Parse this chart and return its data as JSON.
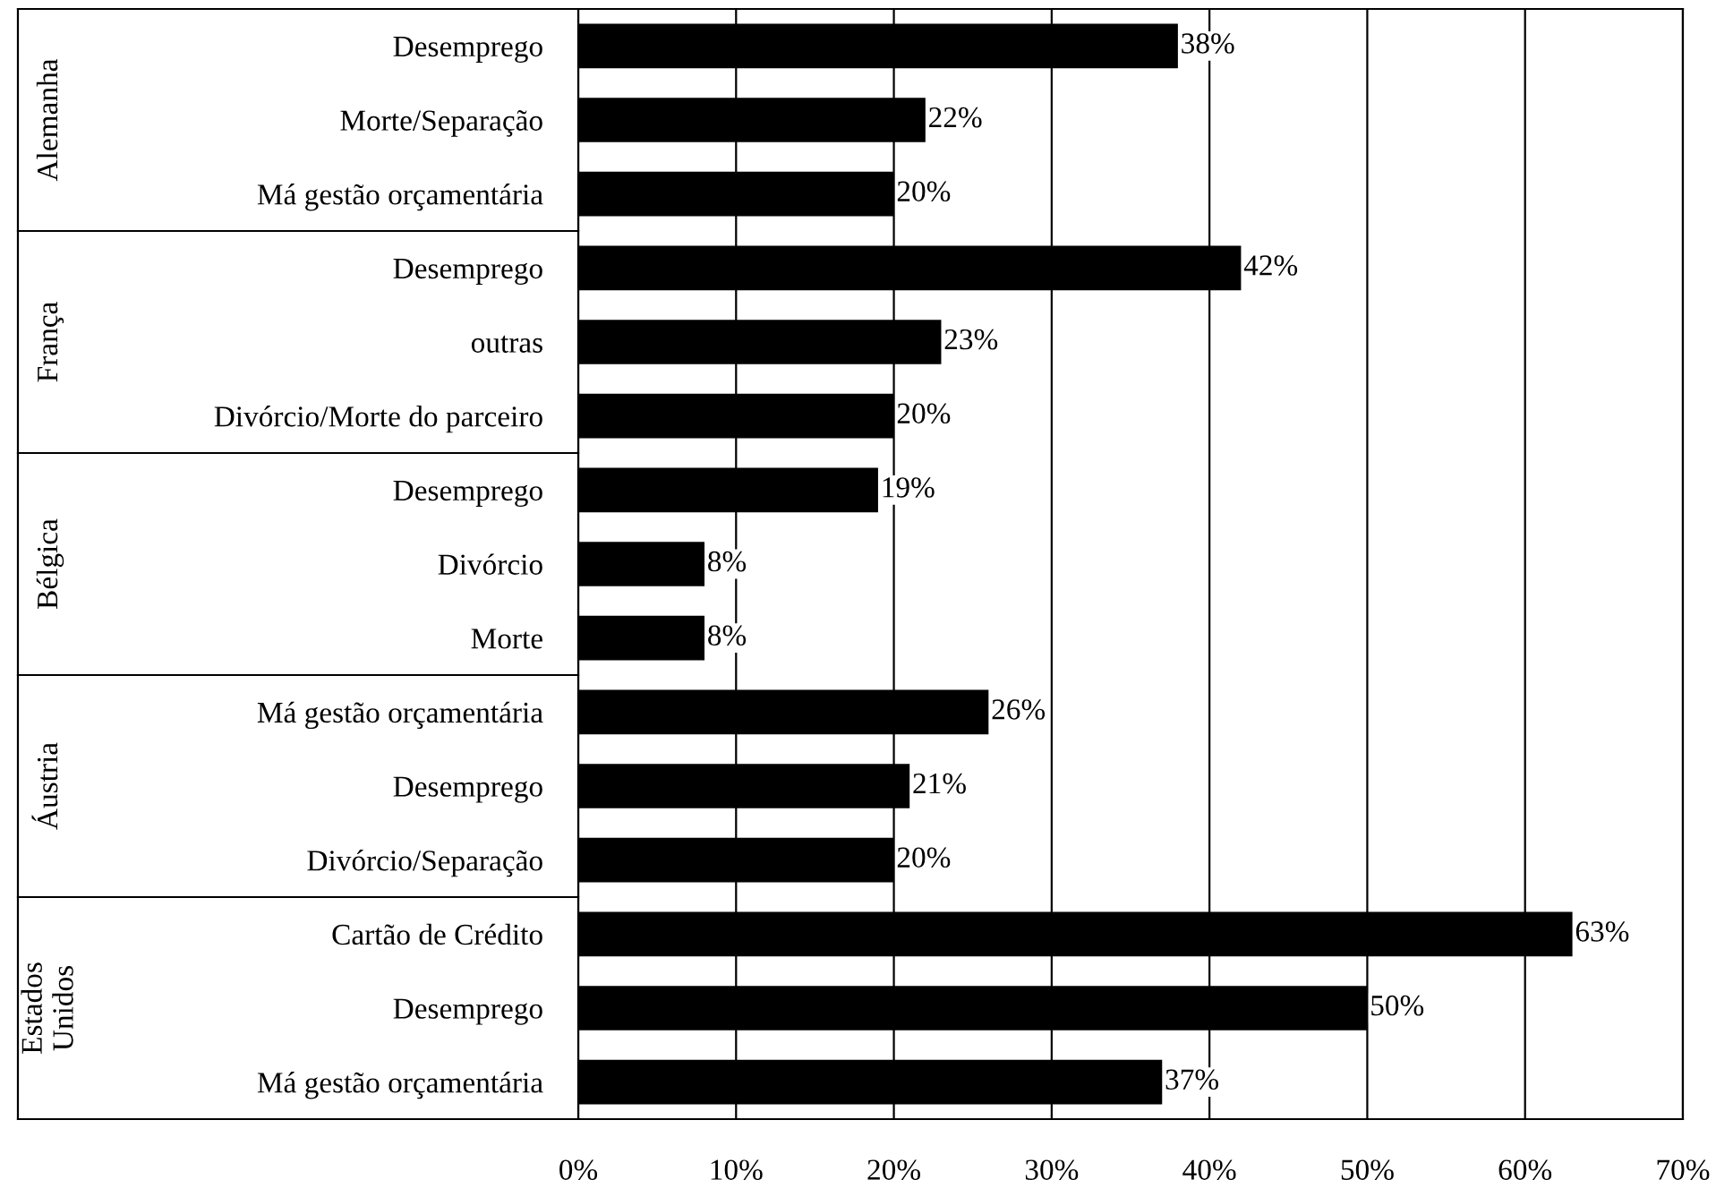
{
  "chart_data": {
    "type": "bar",
    "orientation": "horizontal",
    "categories": [
      "Desemprego",
      "Morte/Separação",
      "Má gestão orçamentária",
      "Desemprego",
      "outras",
      "Divórcio/Morte do parceiro",
      "Desemprego",
      "Divórcio",
      "Morte",
      "Má gestão orçamentária",
      "Desemprego",
      "Divórcio/Separação",
      "Cartão de Crédito",
      "Desemprego",
      "Má gestão orçamentária"
    ],
    "values": [
      38,
      22,
      20,
      42,
      23,
      20,
      19,
      8,
      8,
      26,
      21,
      20,
      63,
      50,
      37
    ],
    "value_labels": [
      "38%",
      "22%",
      "20%",
      "42%",
      "23%",
      "20%",
      "19%",
      "8%",
      "8%",
      "26%",
      "21%",
      "20%",
      "63%",
      "50%",
      "37%"
    ],
    "color": "#000000",
    "annotations": [
      "Alemanha",
      "França",
      "Bélgica",
      "Áustria",
      "Estados\nUnidos"
    ],
    "xlim": [
      0,
      70
    ],
    "xticks": [
      {
        "value": 0,
        "label": "0%"
      },
      {
        "value": 10,
        "label": "10%"
      },
      {
        "value": 20,
        "label": "20%"
      },
      {
        "value": 30,
        "label": "30%"
      },
      {
        "value": 40,
        "label": "40%"
      },
      {
        "value": 50,
        "label": "50%"
      },
      {
        "value": 60,
        "label": "60%"
      },
      {
        "value": 70,
        "label": "70%"
      }
    ],
    "grid": "x",
    "legend": false
  }
}
